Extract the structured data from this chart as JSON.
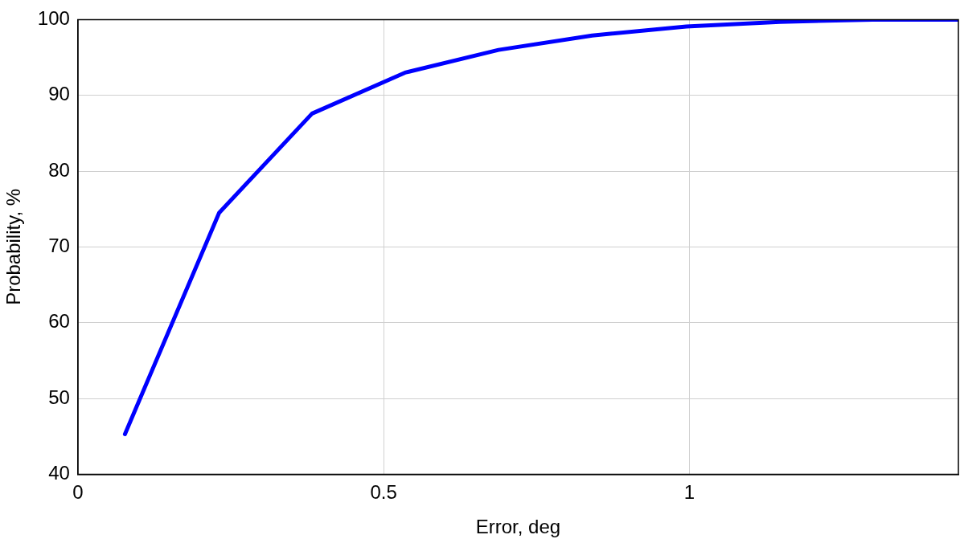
{
  "chart_data": {
    "type": "line",
    "xlabel": "Error, deg",
    "ylabel": "Probability, %",
    "series": [
      {
        "color": "#0000ff",
        "x": [
          0.077,
          0.231,
          0.383,
          0.535,
          0.688,
          0.841,
          0.995,
          1.148,
          1.3,
          1.44
        ],
        "values": [
          45.3,
          74.5,
          87.6,
          93.0,
          96.0,
          97.9,
          99.1,
          99.7,
          100,
          100
        ]
      }
    ],
    "xlim": [
      0,
      1.44
    ],
    "xticks": [
      0,
      0.5,
      1
    ],
    "ylim": [
      40,
      100
    ],
    "yticks": [
      40,
      50,
      60,
      70,
      80,
      90,
      100
    ],
    "grid": true,
    "legend": false,
    "marker": "none",
    "line_style": "solid"
  }
}
